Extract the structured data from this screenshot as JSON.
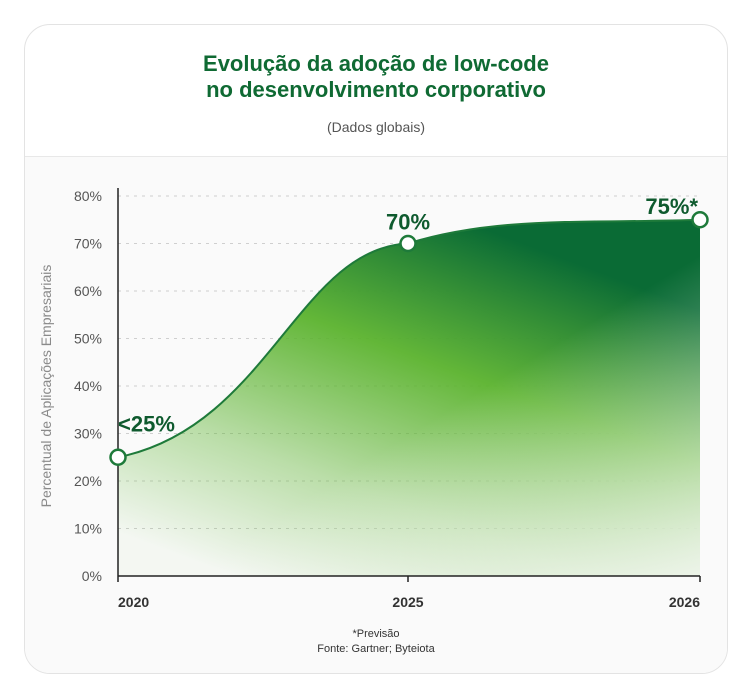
{
  "header": {
    "title_line1": "Evolução da adoção de low-code",
    "title_line2": "no desenvolvimento corporativo",
    "subtitle": "(Dados globais)"
  },
  "footer": {
    "note": "*Previsão",
    "source": "Fonte: Gartner; Byteiota"
  },
  "colors": {
    "title": "#0f6a33",
    "area_dark": "#0a6b35",
    "area_light": "#5bb32e",
    "line": "#1e7a3a"
  },
  "chart_data": {
    "type": "area",
    "x": [
      "2020",
      "2025",
      "2026"
    ],
    "values": [
      25,
      70,
      75
    ],
    "data_labels": [
      "<25%",
      "70%",
      "75%*"
    ],
    "ylabel": "Percentual de Aplicações Empresariais",
    "ylim": [
      0,
      80
    ],
    "yticks": [
      "0%",
      "10%",
      "20%",
      "30%",
      "40%",
      "50%",
      "60%",
      "70%",
      "80%"
    ],
    "grid": true
  }
}
